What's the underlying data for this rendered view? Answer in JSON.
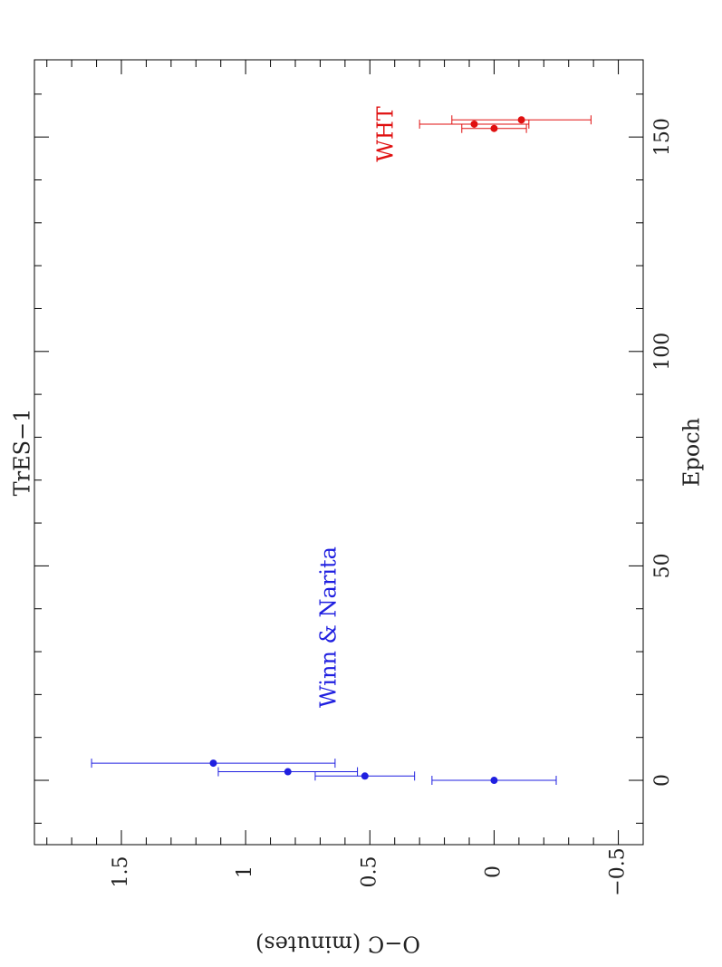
{
  "chart_data": {
    "type": "scatter",
    "title": "TrES−1",
    "xlabel": "Epoch",
    "ylabel": "O−C  (minutes)",
    "xlim": [
      -15,
      168
    ],
    "ylim": [
      -0.6,
      1.85
    ],
    "x_ticks": [
      0,
      50,
      100,
      150
    ],
    "x_tick_labels": [
      "0",
      "50",
      "100",
      "150"
    ],
    "y_ticks": [
      -0.5,
      0,
      0.5,
      1,
      1.5
    ],
    "y_tick_labels": [
      "−0.5",
      "0",
      "0.5",
      "1",
      "1.5"
    ],
    "grid": false,
    "orientation": "rotated 90° counter-clockwise (Epoch runs up the page, O−C runs right-to-left)",
    "series": [
      {
        "name": "Winn & Narita",
        "color": "#1f1fe0",
        "points": [
          {
            "x": 0,
            "y": 0.0,
            "err": 0.25
          },
          {
            "x": 1,
            "y": 0.52,
            "err": 0.2
          },
          {
            "x": 2,
            "y": 0.83,
            "err": 0.28
          },
          {
            "x": 4,
            "y": 1.13,
            "err": 0.49
          }
        ]
      },
      {
        "name": "WHT",
        "color": "#e01010",
        "points": [
          {
            "x": 152,
            "y": 0.0,
            "err": 0.13
          },
          {
            "x": 153,
            "y": 0.08,
            "err": 0.22
          },
          {
            "x": 154,
            "y": -0.11,
            "err": 0.28
          }
        ]
      }
    ]
  }
}
